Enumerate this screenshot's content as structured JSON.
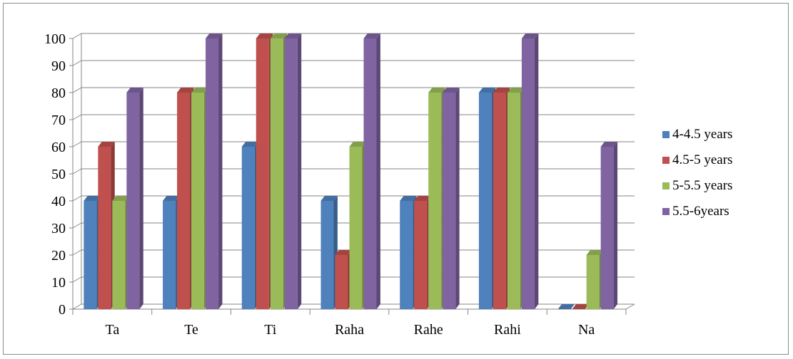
{
  "chart_data": {
    "type": "bar",
    "title": "",
    "xlabel": "",
    "ylabel": "",
    "categories": [
      "Ta",
      "Te",
      "Ti",
      "Raha",
      "Rahe",
      "Rahi",
      "Na"
    ],
    "ylim": [
      0,
      100
    ],
    "yticks": [
      0,
      10,
      20,
      30,
      40,
      50,
      60,
      70,
      80,
      90,
      100
    ],
    "grid": true,
    "legend_position": "right",
    "style": "3d-clustered-column",
    "series": [
      {
        "name": "4-4.5 years",
        "color": "#4f81bd",
        "values": [
          40,
          40,
          60,
          40,
          40,
          80,
          0
        ]
      },
      {
        "name": "4.5-5 years",
        "color": "#c0504d",
        "values": [
          60,
          80,
          100,
          20,
          40,
          80,
          0
        ]
      },
      {
        "name": "5-5.5 years",
        "color": "#9bbb59",
        "values": [
          40,
          80,
          100,
          60,
          80,
          80,
          20
        ]
      },
      {
        "name": "5.5-6years",
        "color": "#8064a2",
        "values": [
          80,
          100,
          100,
          100,
          80,
          100,
          60
        ]
      }
    ]
  }
}
